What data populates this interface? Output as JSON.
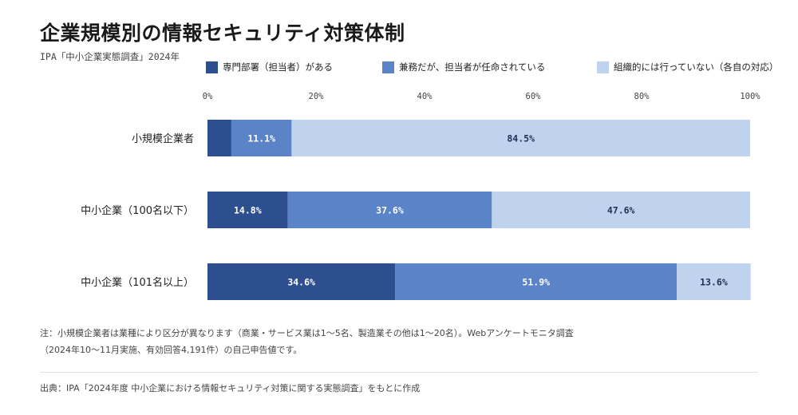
{
  "title": "企業規模別の情報セキュリティ対策体制",
  "subtitle": "IPA「中小企業実態調査」2024年",
  "colors": {
    "dedicated": "#2e4f8f",
    "concurrent": "#5a84c7",
    "none": "#bfd3ee"
  },
  "chart_data": {
    "type": "bar",
    "orientation": "horizontal",
    "stacked": true,
    "title": "企業規模別の情報セキュリティ対策体制",
    "xlim": [
      0,
      100
    ],
    "x_ticks": [
      "0%",
      "20%",
      "40%",
      "60%",
      "80%",
      "100%"
    ],
    "categories": [
      "小規模企業者",
      "中小企業（100名以下）",
      "中小企業（101名以上）"
    ],
    "series": [
      {
        "name": "専門部署（担当者）がある",
        "color": "#2e4f8f",
        "values": [
          4.4,
          14.8,
          34.6
        ],
        "labels": [
          "",
          "14.8%",
          "34.6%"
        ]
      },
      {
        "name": "兼務だが、担当者が任命されている",
        "color": "#5a84c7",
        "values": [
          11.1,
          37.6,
          51.9
        ],
        "labels": [
          "11.1%",
          "37.6%",
          "51.9%"
        ]
      },
      {
        "name": "組織的には行っていない（各自の対応）",
        "color": "#bfd3ee",
        "values": [
          84.5,
          47.6,
          13.6
        ],
        "labels": [
          "84.5%",
          "47.6%",
          "13.6%"
        ]
      }
    ],
    "legend_position": "top",
    "grid": false
  },
  "note": "注：小規模企業者は業種により区分が異なります（商業・サービス業は1～5名、製造業その他は1～20名）。Webアンケートモニタ調査（2024年10～11月実施、有効回答4,191件）の自己申告値です。",
  "source": "出典：IPA「2024年度 中小企業における情報セキュリティ対策に関する実態調査」をもとに作成"
}
